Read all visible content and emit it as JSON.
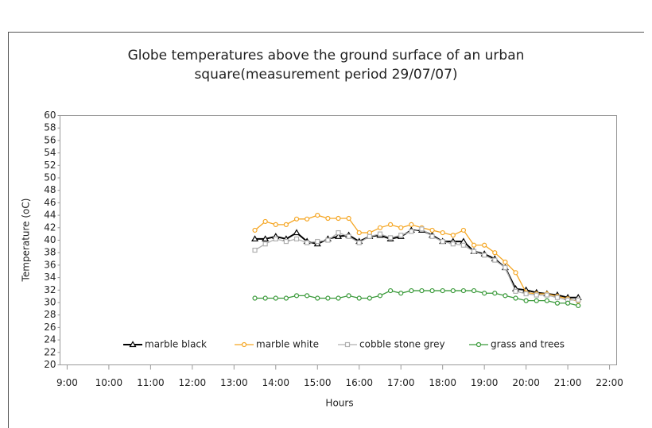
{
  "chart_data": {
    "type": "line",
    "title": [
      "Globe temperatures above the ground surface of an urban",
      "square(measurement period 29/07/07)"
    ],
    "x_label": "Hours",
    "y_label": "Temperature (oC)",
    "x": [
      13.5,
      13.75,
      14,
      14.25,
      14.5,
      14.75,
      15,
      15.25,
      15.5,
      15.75,
      16,
      16.25,
      16.5,
      16.75,
      17,
      17.25,
      17.5,
      17.75,
      18,
      18.25,
      18.5,
      18.75,
      19,
      19.25,
      19.5,
      19.75,
      20,
      20.25,
      20.5,
      20.75,
      21,
      21.25
    ],
    "series": [
      {
        "name": "marble black",
        "color": "#000000",
        "marker": "triangle",
        "values": [
          40.2,
          40.2,
          40.6,
          40.2,
          41.2,
          39.8,
          39.4,
          40.2,
          40.6,
          40.8,
          39.8,
          40.6,
          40.8,
          40.2,
          40.6,
          41.6,
          41.6,
          40.8,
          39.8,
          39.8,
          39.8,
          38.2,
          37.8,
          37,
          35.6,
          32.2,
          32,
          31.6,
          31.4,
          31.2,
          30.8,
          30.8
        ]
      },
      {
        "name": "marble white",
        "color": "#f5a623",
        "marker": "circle",
        "values": [
          41.6,
          43,
          42.5,
          42.5,
          43.4,
          43.4,
          44,
          43.5,
          43.5,
          43.5,
          41.2,
          41.2,
          42,
          42.5,
          42,
          42.5,
          42,
          41.6,
          41.2,
          40.8,
          41.6,
          39.2,
          39.2,
          38,
          36.5,
          34.8,
          31.6,
          31.4,
          31.4,
          31,
          30.6,
          30.2
        ]
      },
      {
        "name": "cobble stone grey",
        "color": "#b0b0b0",
        "marker": "square",
        "values": [
          38.4,
          39.4,
          40.2,
          39.8,
          40.2,
          39.6,
          39.8,
          40,
          41.2,
          40.6,
          39.6,
          40.6,
          41,
          40.4,
          40.8,
          41.4,
          41.8,
          40.6,
          39.8,
          39.4,
          39.2,
          38.2,
          37.6,
          36.8,
          35.6,
          31.8,
          31.4,
          31.2,
          31.2,
          30.8,
          30.4,
          30.4
        ]
      },
      {
        "name": "grass and trees",
        "color": "#3a9a3a",
        "marker": "circle",
        "values": [
          30.7,
          30.7,
          30.7,
          30.7,
          31.1,
          31.1,
          30.7,
          30.7,
          30.7,
          31.1,
          30.7,
          30.7,
          31.1,
          31.9,
          31.5,
          31.9,
          31.9,
          31.9,
          31.9,
          31.9,
          31.9,
          31.9,
          31.5,
          31.5,
          31.1,
          30.7,
          30.3,
          30.3,
          30.3,
          29.9,
          29.9,
          29.5
        ]
      }
    ],
    "xlim": [
      8.83,
      22.17
    ],
    "xticks": [
      {
        "value": 9,
        "label": "9:00"
      },
      {
        "value": 10,
        "label": "10:00"
      },
      {
        "value": 11,
        "label": "11:00"
      },
      {
        "value": 12,
        "label": "12:00"
      },
      {
        "value": 13,
        "label": "13:00"
      },
      {
        "value": 14,
        "label": "14:00"
      },
      {
        "value": 15,
        "label": "15:00"
      },
      {
        "value": 16,
        "label": "16:00"
      },
      {
        "value": 17,
        "label": "17:00"
      },
      {
        "value": 18,
        "label": "18:00"
      },
      {
        "value": 19,
        "label": "19:00"
      },
      {
        "value": 20,
        "label": "20:00"
      },
      {
        "value": 21,
        "label": "21:00"
      },
      {
        "value": 22,
        "label": "22:00"
      }
    ],
    "ylim": [
      20,
      60
    ],
    "yticks": [
      20,
      22,
      24,
      26,
      28,
      30,
      32,
      34,
      36,
      38,
      40,
      42,
      44,
      46,
      48,
      50,
      52,
      54,
      56,
      58,
      60
    ],
    "grid": false
  }
}
